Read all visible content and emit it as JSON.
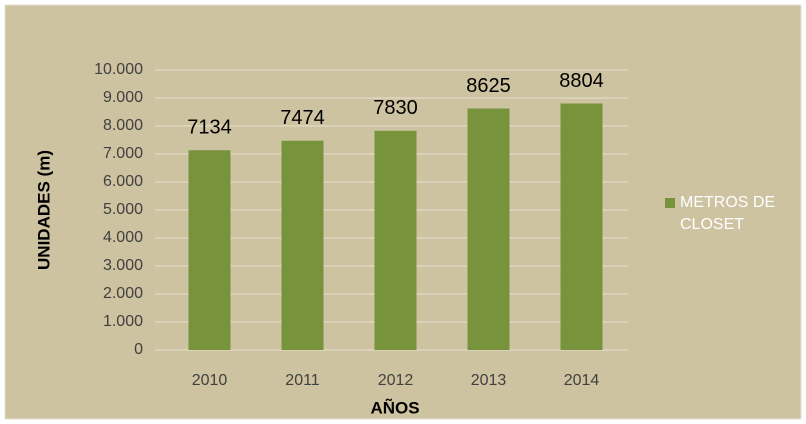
{
  "chart_data": {
    "type": "bar",
    "categories": [
      "2010",
      "2011",
      "2012",
      "2013",
      "2014"
    ],
    "series": [
      {
        "name": "METROS DE CLOSET",
        "color": "#77933c",
        "values": [
          7134,
          7474,
          7830,
          8625,
          8804
        ]
      }
    ],
    "xlabel": "AÑOS",
    "ylabel": "UNIDADES (m)",
    "ylim": [
      0,
      10000
    ],
    "yticks": [
      0,
      {
        "value": 1000,
        "label": "1.000"
      },
      {
        "value": 2000,
        "label": "2.000"
      },
      {
        "value": 3000,
        "label": "3.000"
      },
      {
        "value": 4000,
        "label": "4.000"
      },
      {
        "value": 5000,
        "label": "5.000"
      },
      {
        "value": 6000,
        "label": "6.000"
      },
      {
        "value": 7000,
        "label": "7.000"
      },
      {
        "value": 8000,
        "label": "8.000"
      },
      {
        "value": 9000,
        "label": "9.000"
      },
      {
        "value": 10000,
        "label": "10.000"
      }
    ],
    "grid": true,
    "legend": "right"
  }
}
